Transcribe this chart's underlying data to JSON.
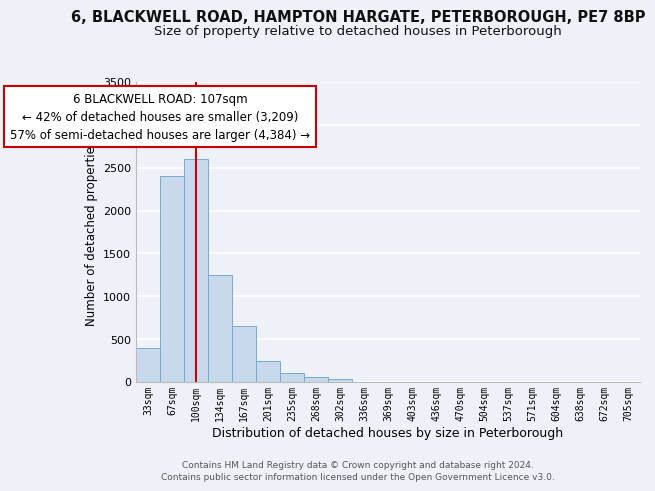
{
  "title1": "6, BLACKWELL ROAD, HAMPTON HARGATE, PETERBOROUGH, PE7 8BP",
  "title2": "Size of property relative to detached houses in Peterborough",
  "xlabel": "Distribution of detached houses by size in Peterborough",
  "ylabel": "Number of detached properties",
  "bar_labels": [
    "33sqm",
    "67sqm",
    "100sqm",
    "134sqm",
    "167sqm",
    "201sqm",
    "235sqm",
    "268sqm",
    "302sqm",
    "336sqm",
    "369sqm",
    "403sqm",
    "436sqm",
    "470sqm",
    "504sqm",
    "537sqm",
    "571sqm",
    "604sqm",
    "638sqm",
    "672sqm",
    "705sqm"
  ],
  "bar_values": [
    400,
    2400,
    2600,
    1250,
    650,
    250,
    105,
    55,
    40,
    5,
    5,
    0,
    0,
    0,
    0,
    0,
    0,
    0,
    0,
    0,
    0
  ],
  "bar_color": "#c8d9ee",
  "bar_edge_color": "#7aabcc",
  "vline_x": 2,
  "vline_color": "#cc0000",
  "ylim": [
    0,
    3500
  ],
  "yticks": [
    0,
    500,
    1000,
    1500,
    2000,
    2500,
    3000,
    3500
  ],
  "annotation_title": "6 BLACKWELL ROAD: 107sqm",
  "annotation_line1": "← 42% of detached houses are smaller (3,209)",
  "annotation_line2": "57% of semi-detached houses are larger (4,384) →",
  "annotation_box_color": "#ffffff",
  "annotation_box_edge": "#cc0000",
  "footer1": "Contains HM Land Registry data © Crown copyright and database right 2024.",
  "footer2": "Contains public sector information licensed under the Open Government Licence v3.0.",
  "bg_color": "#eef2f8",
  "grid_color": "#ffffff",
  "title1_fontsize": 10.5,
  "title2_fontsize": 9.5
}
